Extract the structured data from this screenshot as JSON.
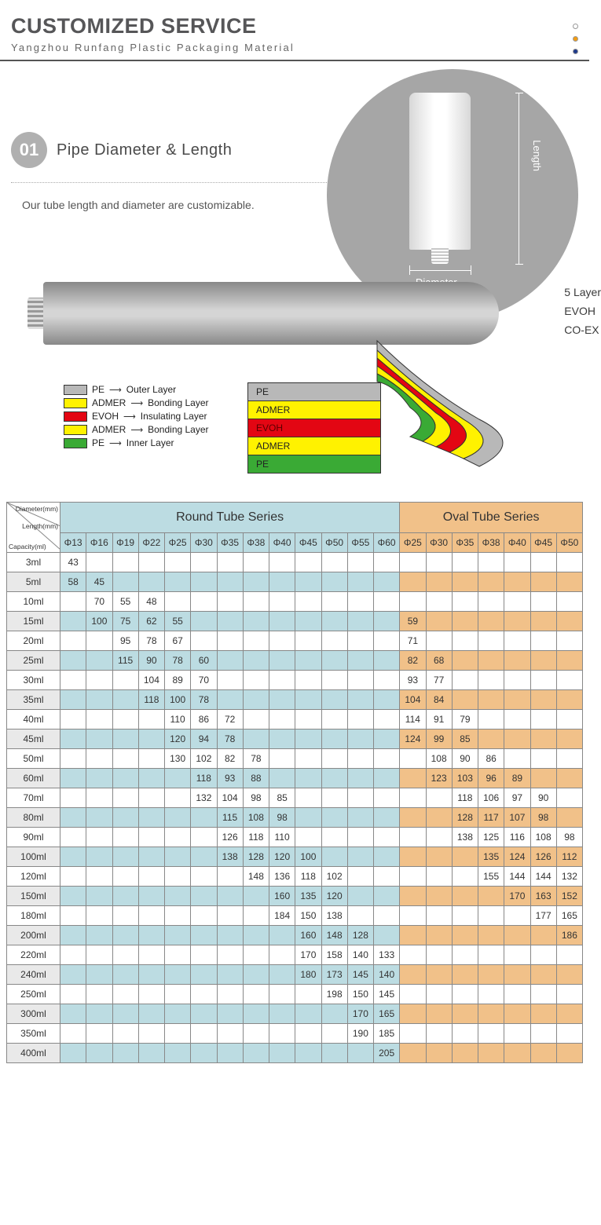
{
  "header": {
    "title": "CUSTOMIZED SERVICE",
    "subtitle": "Yangzhou Runfang Plastic Packaging Material",
    "dot_colors": [
      "#ffffff",
      "#f39c12",
      "#1e3a8a"
    ],
    "dot_border": "#999999"
  },
  "step": {
    "num": "01",
    "title": "Pipe Diameter & Length",
    "desc": "Our tube length and diameter are customizable.",
    "len_label": "Length",
    "dia_label": "Diameter"
  },
  "layers": {
    "side_text": [
      "5 Layer",
      "EVOH",
      "CO-EX"
    ],
    "legend": [
      {
        "color": "#b8b8b8",
        "name": "PE",
        "role": "Outer Layer"
      },
      {
        "color": "#fff200",
        "name": "ADMER",
        "role": "Bonding Layer"
      },
      {
        "color": "#e30613",
        "name": "EVOH",
        "role": "Insulating Layer"
      },
      {
        "color": "#fff200",
        "name": "ADMER",
        "role": "Bonding Layer"
      },
      {
        "color": "#3aaa35",
        "name": "PE",
        "role": "Inner Layer"
      }
    ],
    "label_box": [
      {
        "color": "#b8b8b8",
        "text": "PE"
      },
      {
        "color": "#fff200",
        "text": "ADMER"
      },
      {
        "color": "#e30613",
        "text": "EVOH",
        "fg": "#5a0000"
      },
      {
        "color": "#fff200",
        "text": "ADMER"
      },
      {
        "color": "#3aaa35",
        "text": "PE"
      }
    ]
  },
  "table": {
    "round_title": "Round Tube Series",
    "oval_title": "Oval Tube Series",
    "corner_labels": [
      "Diameter(mm)",
      "Length(mm)",
      "Capacity(ml)"
    ],
    "round_diams": [
      "Φ13",
      "Φ16",
      "Φ19",
      "Φ22",
      "Φ25",
      "Φ30",
      "Φ35",
      "Φ38",
      "Φ40",
      "Φ45",
      "Φ50",
      "Φ55",
      "Φ60"
    ],
    "oval_diams": [
      "Φ25",
      "Φ30",
      "Φ35",
      "Φ38",
      "Φ40",
      "Φ45",
      "Φ50"
    ],
    "capacities": [
      "3ml",
      "5ml",
      "10ml",
      "15ml",
      "20ml",
      "25ml",
      "30ml",
      "35ml",
      "40ml",
      "45ml",
      "50ml",
      "60ml",
      "70ml",
      "80ml",
      "90ml",
      "100ml",
      "120ml",
      "150ml",
      "180ml",
      "200ml",
      "220ml",
      "240ml",
      "250ml",
      "300ml",
      "350ml",
      "400ml"
    ],
    "round_data": {
      "3ml": {
        "Φ13": "43"
      },
      "5ml": {
        "Φ13": "58",
        "Φ16": "45"
      },
      "10ml": {
        "Φ16": "70",
        "Φ19": "55",
        "Φ22": "48"
      },
      "15ml": {
        "Φ16": "100",
        "Φ19": "75",
        "Φ22": "62",
        "Φ25": "55"
      },
      "20ml": {
        "Φ19": "95",
        "Φ22": "78",
        "Φ25": "67"
      },
      "25ml": {
        "Φ19": "115",
        "Φ22": "90",
        "Φ25": "78",
        "Φ30": "60"
      },
      "30ml": {
        "Φ22": "104",
        "Φ25": "89",
        "Φ30": "70"
      },
      "35ml": {
        "Φ22": "118",
        "Φ25": "100",
        "Φ30": "78"
      },
      "40ml": {
        "Φ25": "110",
        "Φ30": "86",
        "Φ35": "72"
      },
      "45ml": {
        "Φ25": "120",
        "Φ30": "94",
        "Φ35": "78"
      },
      "50ml": {
        "Φ25": "130",
        "Φ30": "102",
        "Φ35": "82",
        "Φ38": "78"
      },
      "60ml": {
        "Φ30": "118",
        "Φ35": "93",
        "Φ38": "88"
      },
      "70ml": {
        "Φ30": "132",
        "Φ35": "104",
        "Φ38": "98",
        "Φ40": "85"
      },
      "80ml": {
        "Φ35": "115",
        "Φ38": "108",
        "Φ40": "98"
      },
      "90ml": {
        "Φ35": "126",
        "Φ38": "118",
        "Φ40": "110"
      },
      "100ml": {
        "Φ35": "138",
        "Φ38": "128",
        "Φ40": "120",
        "Φ45": "100"
      },
      "120ml": {
        "Φ38": "148",
        "Φ40": "136",
        "Φ45": "118",
        "Φ50": "102"
      },
      "150ml": {
        "Φ40": "160",
        "Φ45": "135",
        "Φ50": "120"
      },
      "180ml": {
        "Φ40": "184",
        "Φ45": "150",
        "Φ50": "138"
      },
      "200ml": {
        "Φ45": "160",
        "Φ50": "148",
        "Φ55": "128"
      },
      "220ml": {
        "Φ45": "170",
        "Φ50": "158",
        "Φ55": "140",
        "Φ60": "133"
      },
      "240ml": {
        "Φ45": "180",
        "Φ50": "173",
        "Φ55": "145",
        "Φ60": "140"
      },
      "250ml": {
        "Φ50": "198",
        "Φ55": "150",
        "Φ60": "145"
      },
      "300ml": {
        "Φ55": "170",
        "Φ60": "165"
      },
      "350ml": {
        "Φ55": "190",
        "Φ60": "185"
      },
      "400ml": {
        "Φ60": "205"
      }
    },
    "oval_data": {
      "15ml": {
        "Φ25": "59"
      },
      "20ml": {
        "Φ25": "71"
      },
      "25ml": {
        "Φ25": "82",
        "Φ30": "68"
      },
      "30ml": {
        "Φ25": "93",
        "Φ30": "77"
      },
      "35ml": {
        "Φ25": "104",
        "Φ30": "84"
      },
      "40ml": {
        "Φ25": "114",
        "Φ30": "91",
        "Φ35": "79"
      },
      "45ml": {
        "Φ25": "124",
        "Φ30": "99",
        "Φ35": "85"
      },
      "50ml": {
        "Φ30": "108",
        "Φ35": "90",
        "Φ38": "86"
      },
      "60ml": {
        "Φ30": "123",
        "Φ35": "103",
        "Φ38": "96",
        "Φ40": "89"
      },
      "70ml": {
        "Φ35": "118",
        "Φ38": "106",
        "Φ40": "97",
        "Φ45": "90"
      },
      "80ml": {
        "Φ35": "128",
        "Φ38": "117",
        "Φ40": "107",
        "Φ45": "98"
      },
      "90ml": {
        "Φ35": "138",
        "Φ38": "125",
        "Φ40": "116",
        "Φ45": "108",
        "Φ50": "98"
      },
      "100ml": {
        "Φ38": "135",
        "Φ40": "124",
        "Φ45": "126",
        "Φ50": "112"
      },
      "120ml": {
        "Φ38": "155",
        "Φ40": "144",
        "Φ45": "144",
        "Φ50": "132"
      },
      "150ml": {
        "Φ40": "170",
        "Φ45": "163",
        "Φ50": "152"
      },
      "180ml": {
        "Φ45": "177",
        "Φ50": "165"
      },
      "200ml": {
        "Φ50": "186"
      }
    },
    "alt_rows": [
      "5ml",
      "15ml",
      "25ml",
      "35ml",
      "45ml",
      "60ml",
      "80ml",
      "100ml",
      "150ml",
      "200ml",
      "240ml",
      "300ml",
      "400ml"
    ],
    "colors": {
      "round": "#bcdce2",
      "oval": "#f1c189",
      "alt_cap": "#e9e9e9"
    }
  }
}
